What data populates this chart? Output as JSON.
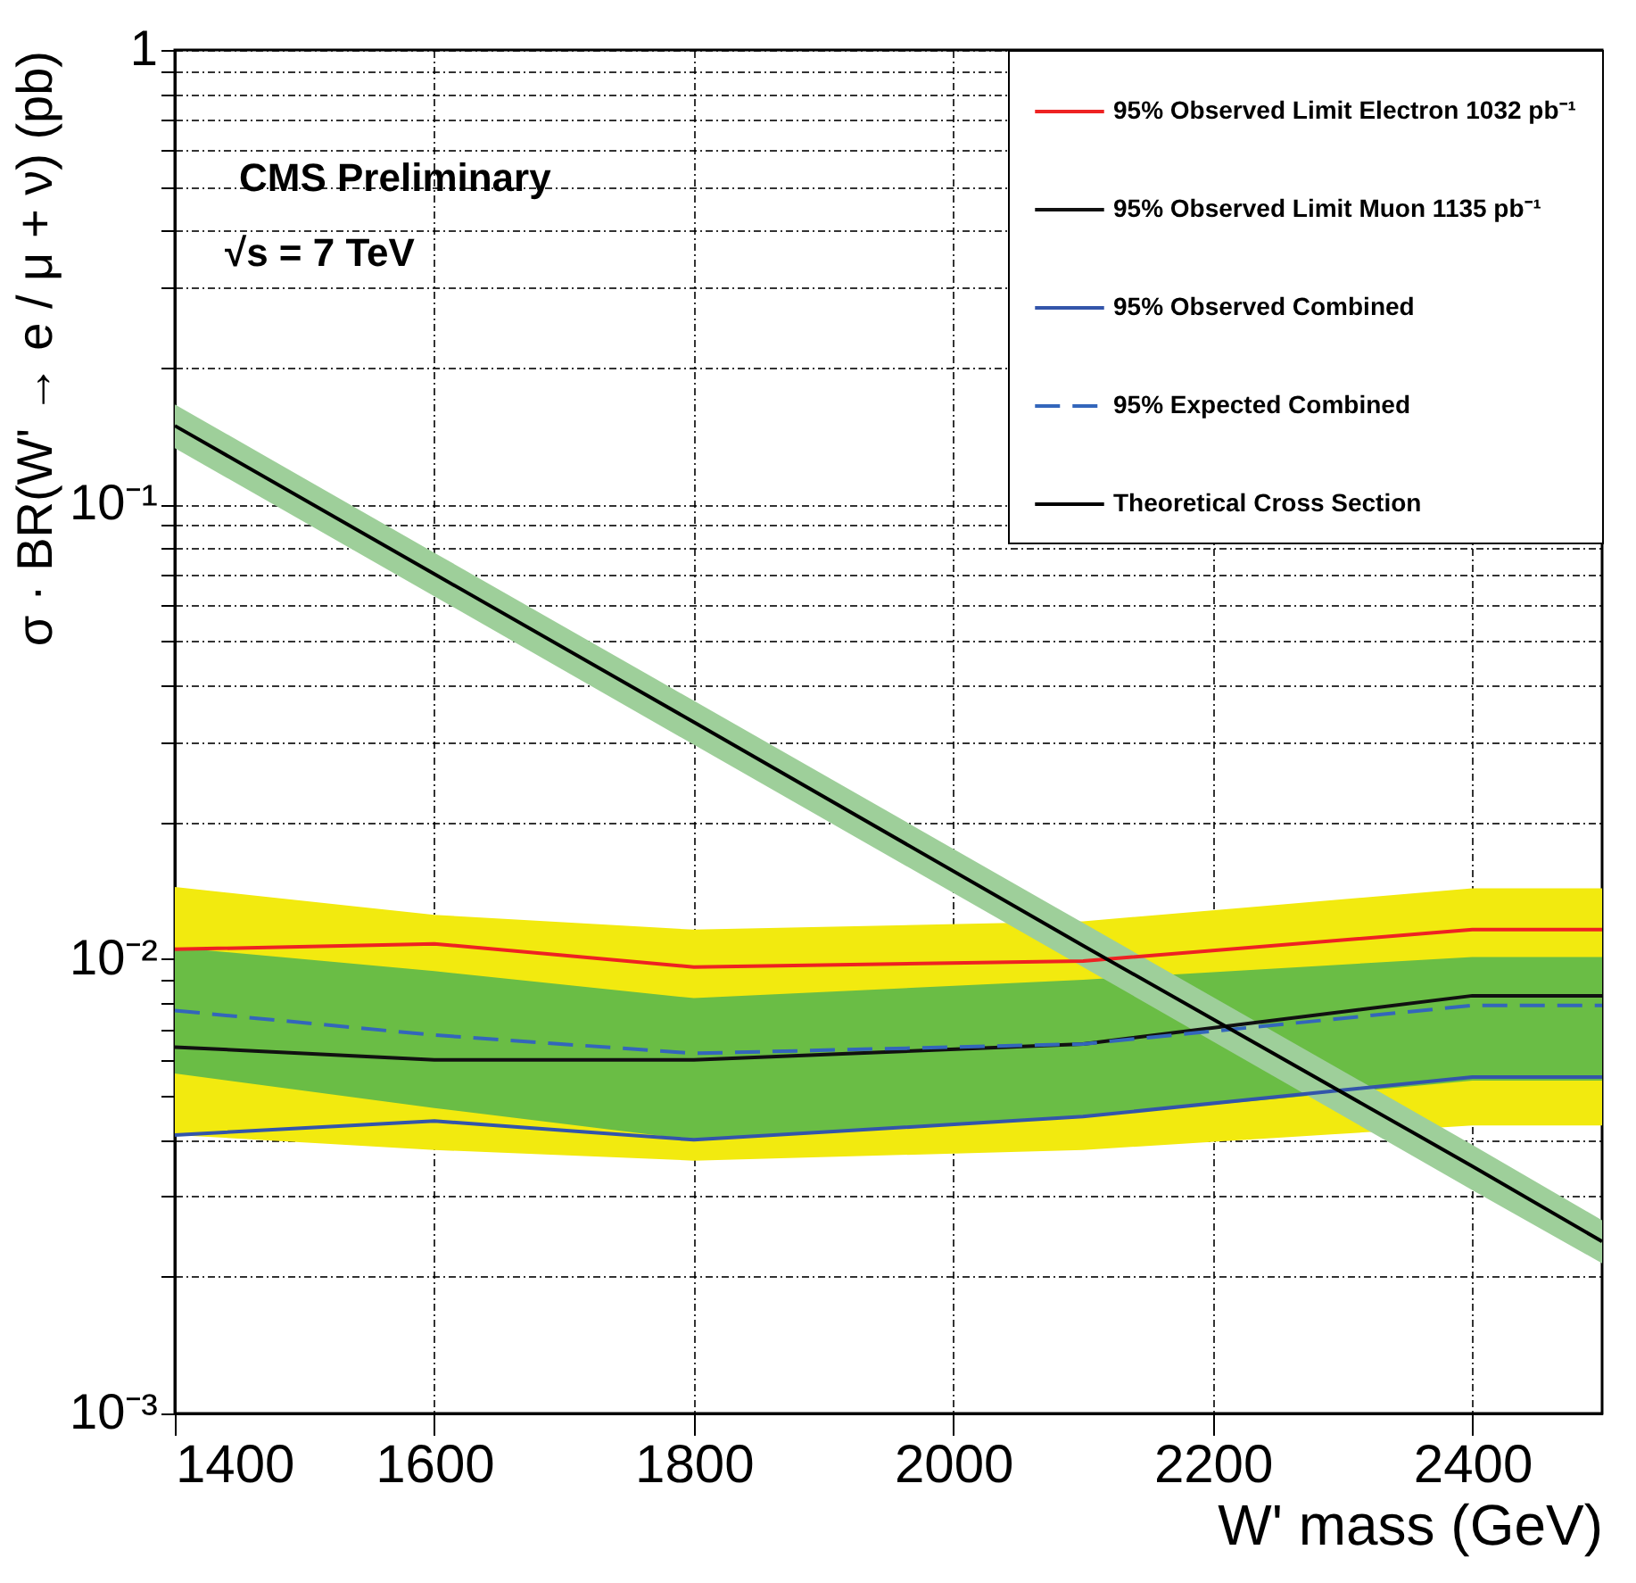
{
  "chart_data": {
    "type": "line",
    "xlabel": "W' mass (GeV)",
    "ylabel": "σ · BR(W' → e / μ + ν) (pb)",
    "annotations": [
      "CMS Preliminary",
      "√s = 7 TeV"
    ],
    "x": [
      1400,
      1600,
      1800,
      2100,
      2400,
      2500
    ],
    "log": "y",
    "grid": true,
    "legend": "top right",
    "xlim": [
      1400,
      2500
    ],
    "xticks": [
      1400,
      1600,
      1800,
      2000,
      2200,
      2400
    ],
    "ylim": [
      0.001,
      1
    ],
    "yticks": [
      {
        "value": 0.001,
        "label": "10⁻³"
      },
      {
        "value": 0.002,
        "label": null
      },
      {
        "value": 0.003,
        "label": null
      },
      {
        "value": 0.004,
        "label": null
      },
      {
        "value": 0.005,
        "label": null
      },
      {
        "value": 0.006,
        "label": null
      },
      {
        "value": 0.007,
        "label": null
      },
      {
        "value": 0.008,
        "label": null
      },
      {
        "value": 0.009,
        "label": null
      },
      {
        "value": 0.01,
        "label": "10⁻²"
      },
      {
        "value": 0.02,
        "label": null
      },
      {
        "value": 0.03,
        "label": null
      },
      {
        "value": 0.04,
        "label": null
      },
      {
        "value": 0.05,
        "label": null
      },
      {
        "value": 0.06,
        "label": null
      },
      {
        "value": 0.07,
        "label": null
      },
      {
        "value": 0.08,
        "label": null
      },
      {
        "value": 0.09,
        "label": null
      },
      {
        "value": 0.1,
        "label": "10⁻¹"
      },
      {
        "value": 0.2,
        "label": null
      },
      {
        "value": 0.3,
        "label": null
      },
      {
        "value": 0.4,
        "label": null
      },
      {
        "value": 0.5,
        "label": null
      },
      {
        "value": 0.6,
        "label": null
      },
      {
        "value": 0.7,
        "label": null
      },
      {
        "value": 0.8,
        "label": null
      },
      {
        "value": 0.9,
        "label": null
      },
      {
        "value": 1,
        "label": "1"
      }
    ],
    "series": [
      {
        "type": "line",
        "color": "#f2ea0f",
        "values": [
          null,
          null,
          null,
          null,
          null,
          null
        ],
        "upper": [
          0.0144,
          0.0125,
          0.0116,
          0.0121,
          0.0143,
          0.0143
        ],
        "lower": [
          0.0041,
          0.0038,
          0.0036,
          0.0038,
          0.0043,
          0.0043
        ]
      },
      {
        "type": "line",
        "color": "#6abd45",
        "values": [
          null,
          null,
          null,
          null,
          null,
          null
        ],
        "upper": [
          0.0106,
          0.0094,
          0.0082,
          0.009,
          0.0101,
          0.0101
        ],
        "lower": [
          0.0056,
          0.0047,
          0.004,
          0.0045,
          0.0054,
          0.0054
        ]
      },
      {
        "type": "line",
        "color": "#9ecf9a",
        "values": [
          null,
          null,
          null,
          null,
          null,
          null
        ],
        "upper": [
          0.166,
          0.0783,
          0.037,
          0.012,
          0.0039,
          0.00266
        ],
        "lower": [
          0.133,
          0.0628,
          0.0296,
          0.0096,
          0.0031,
          0.00214
        ]
      },
      {
        "name": "95% Observed Limit Electron 1032 pb⁻¹",
        "color": "#ee2222",
        "line_style": "solid",
        "values": [
          0.0105,
          0.0108,
          0.0096,
          0.0099,
          0.0116,
          0.0116
        ]
      },
      {
        "name": "95% Observed Limit Muon 1135 pb⁻¹",
        "color": "#111111",
        "line_style": "solid",
        "values": [
          0.0064,
          0.006,
          0.006,
          0.0065,
          0.0083,
          0.0083
        ]
      },
      {
        "name": "95% Observed Combined",
        "color": "#3355aa",
        "line_style": "solid",
        "values": [
          0.0041,
          0.0044,
          0.004,
          0.0045,
          0.0055,
          0.0055
        ]
      },
      {
        "name": "95% Expected Combined",
        "color": "#3366bb",
        "line_style": "dashed",
        "values": [
          0.0077,
          0.0068,
          0.0062,
          0.0065,
          0.0079,
          0.0079
        ]
      },
      {
        "name": "Theoretical Cross Section",
        "color": "#000000",
        "line_style": "solid",
        "values": [
          0.149,
          0.0703,
          0.0332,
          0.0107,
          0.0035,
          0.00239
        ]
      }
    ]
  }
}
